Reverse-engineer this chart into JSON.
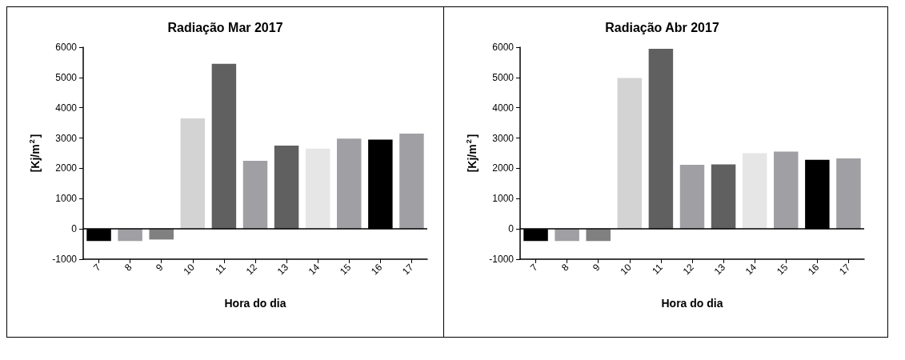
{
  "chart_data": [
    {
      "type": "bar",
      "title": "Radiação Mar 2017",
      "xlabel": "Hora do dia",
      "ylabel": "[Kj/m$^{2}$]",
      "categories": [
        "7",
        "8",
        "9",
        "10",
        "11",
        "12",
        "13",
        "14",
        "15",
        "16",
        "17"
      ],
      "values": [
        -400,
        -400,
        -350,
        3650,
        5450,
        2250,
        2750,
        2650,
        2980,
        2950,
        3150
      ],
      "colors": [
        "#000000",
        "#a0a0a4",
        "#808080",
        "#d3d3d3",
        "#606060",
        "#a0a0a4",
        "#606060",
        "#e6e6e6",
        "#a0a0a4",
        "#000000",
        "#a0a0a4"
      ],
      "ylim": [
        -1000,
        6000
      ],
      "yticks": [
        -1000,
        0,
        1000,
        2000,
        3000,
        4000,
        5000,
        6000
      ],
      "grid": false,
      "ref_lines": [
        {
          "axis": "y",
          "value": 0
        }
      ]
    },
    {
      "type": "bar",
      "title": "Radiação Abr 2017",
      "xlabel": "Hora do dia",
      "ylabel": "[Kj/m$^{2}$]",
      "categories": [
        "7",
        "8",
        "9",
        "10",
        "11",
        "12",
        "13",
        "14",
        "15",
        "16",
        "17"
      ],
      "values": [
        -400,
        -400,
        -400,
        4980,
        5950,
        2120,
        2130,
        2500,
        2550,
        2280,
        2330
      ],
      "colors": [
        "#000000",
        "#a0a0a4",
        "#808080",
        "#d3d3d3",
        "#606060",
        "#a0a0a4",
        "#606060",
        "#e6e6e6",
        "#a0a0a4",
        "#000000",
        "#a0a0a4"
      ],
      "ylim": [
        -1000,
        6000
      ],
      "yticks": [
        -1000,
        0,
        1000,
        2000,
        3000,
        4000,
        5000,
        6000
      ],
      "grid": false,
      "ref_lines": [
        {
          "axis": "y",
          "value": 0
        }
      ]
    }
  ]
}
